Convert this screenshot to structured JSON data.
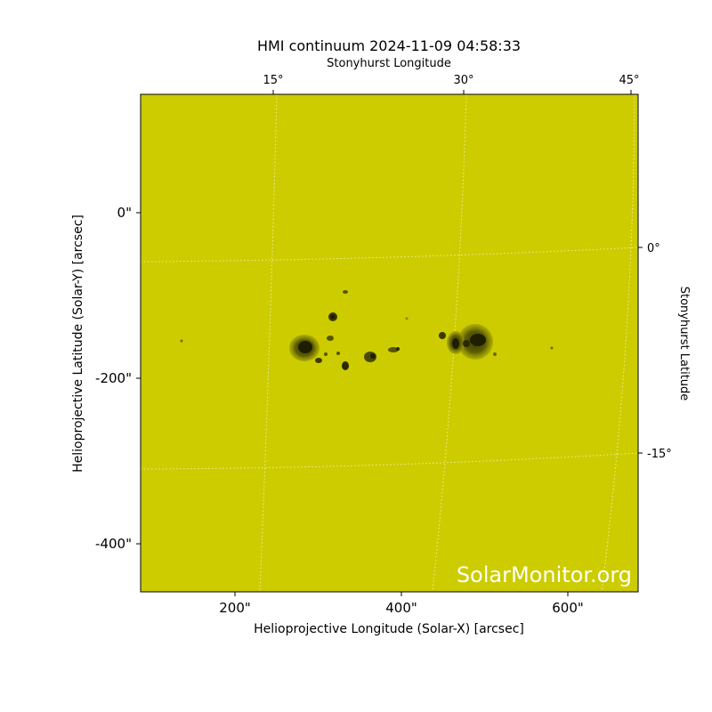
{
  "title": "HMI continuum 2024-11-09 04:58:33",
  "top_axis_label": "Stonyhurst Longitude",
  "right_axis_label": "Stonyhurst Latitude",
  "x_axis_label": "Helioprojective Longitude (Solar-X) [arcsec]",
  "y_axis_label": "Helioprojective Latitude (Solar-Y) [arcsec]",
  "x_ticks": [
    "200\"",
    "400\"",
    "600\""
  ],
  "y_ticks": [
    "0\"",
    "-200\"",
    "-400\""
  ],
  "top_ticks": [
    "15°",
    "30°",
    "45°"
  ],
  "right_ticks": [
    "0°",
    "-15°"
  ],
  "watermark": "SolarMonitor.org",
  "colors": {
    "photosphere": "#cccc00",
    "umbra": "#2a2a00",
    "penumbra": "#6b6b05",
    "grid": "#f0f0a0"
  }
}
